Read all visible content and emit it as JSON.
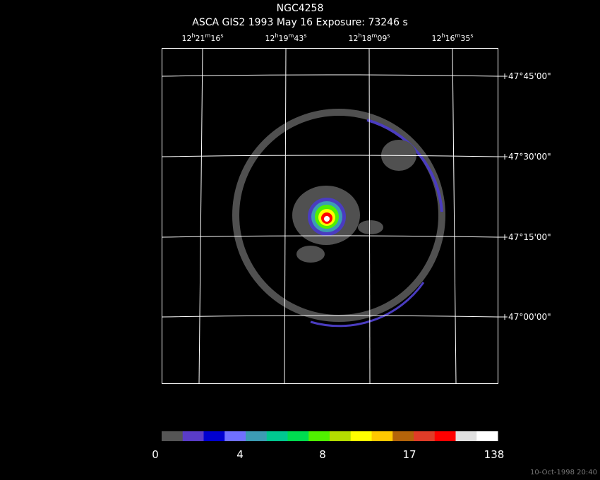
{
  "header": {
    "title": "NGC4258",
    "subtitle": "ASCA GIS2   1993 May 16    Exposure: 73246 s"
  },
  "ra_labels": [
    [
      "12",
      "h",
      "21",
      "m",
      "16",
      "s"
    ],
    [
      "12",
      "h",
      "19",
      "m",
      "43",
      "s"
    ],
    [
      "12",
      "h",
      "18",
      "m",
      "09",
      "s"
    ],
    [
      "12",
      "h",
      "16",
      "m",
      "35",
      "s"
    ]
  ],
  "dec_labels": [
    "+47°45'00\"",
    "+47°30'00\"",
    "+47°15'00\"",
    "+47°00'00\""
  ],
  "colorbar": {
    "colors": [
      "#555555",
      "#5a3cc8",
      "#0000d0",
      "#7070ff",
      "#3c9cb4",
      "#00c890",
      "#00dc50",
      "#50f000",
      "#b4dc00",
      "#ffff00",
      "#ffc800",
      "#b4640a",
      "#e03c28",
      "#ff0000",
      "#e0e0e0",
      "#ffffff"
    ],
    "labels": [
      "0",
      "4",
      "8",
      "17",
      "138"
    ]
  },
  "footer": "10-Oct-1998 20:40"
}
